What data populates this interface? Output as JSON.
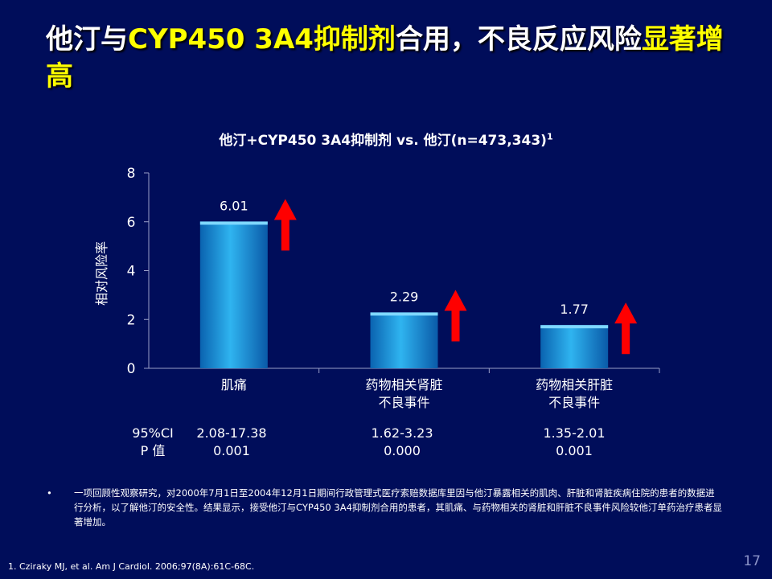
{
  "slide": {
    "title_parts": [
      {
        "text": "他汀与",
        "hl": false
      },
      {
        "text": "CYP450 3A4抑制剂",
        "hl": true
      },
      {
        "text": "合用，不良反应风险",
        "hl": false
      },
      {
        "text": "显著增高",
        "hl": true
      }
    ],
    "page_number": "17",
    "colors": {
      "background": "#000d5a",
      "highlight": "#ffff00",
      "bar": "#1e9fe0",
      "arrow": "#ff0000"
    }
  },
  "chart_data": {
    "type": "bar",
    "title": "他汀+CYP450 3A4抑制剂 vs. 他汀(n=473,343)",
    "title_sup": "1",
    "ylabel": "相对风险率",
    "ylim": [
      0,
      8
    ],
    "yticks": [
      "0",
      "2",
      "4",
      "6",
      "8"
    ],
    "categories": [
      [
        "肌痛"
      ],
      [
        "药物相关肾脏",
        "不良事件"
      ],
      [
        "药物相关肝脏",
        "不良事件"
      ]
    ],
    "values": [
      6.01,
      2.29,
      1.77
    ],
    "value_labels": [
      "6.01",
      "2.29",
      "1.77"
    ],
    "arrows": [
      "up",
      "up",
      "up"
    ]
  },
  "stats": {
    "labels": [
      "95%CI",
      "P 值"
    ],
    "columns": [
      {
        "ci": "2.08-17.38",
        "p": "0.001"
      },
      {
        "ci": "1.62-3.23",
        "p": "0.000"
      },
      {
        "ci": "1.35-2.01",
        "p": "0.001"
      }
    ]
  },
  "bullets": [
    {
      "dot": "•",
      "text": "一项回顾性观察研究，对2000年7月1日至2004年12月1日期间行政管理式医疗索赔数据库里因与他汀暴露相关的肌肉、肝脏和肾脏疾病住院的患者的数据进行分析，以了解他汀的安全性。结果显示，接受他汀与CYP450 3A4抑制剂合用的患者，其肌痛、与药物相关的肾脏和肝脏不良事件风险较他汀单药治疗患者显著增加。"
    }
  ],
  "footnote": "1.   Cziraky MJ, et al. Am J Cardiol. 2006;97(8A):61C-68C."
}
